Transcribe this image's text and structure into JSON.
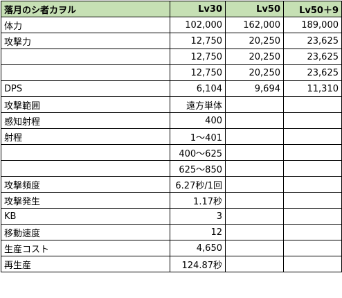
{
  "header": {
    "name": "落月のシ者カヲル",
    "col_lv30": "Lv30",
    "col_lv50": "Lv50",
    "col_lv50p9": "Lv50＋9"
  },
  "rows": [
    {
      "label": "体力",
      "lv30": "102,000",
      "lv50": "162,000",
      "lv50p9": "189,000"
    },
    {
      "label": "攻撃力",
      "lv30": "12,750",
      "lv50": "20,250",
      "lv50p9": "23,625"
    },
    {
      "label": "",
      "lv30": "12,750",
      "lv50": "20,250",
      "lv50p9": "23,625"
    },
    {
      "label": "",
      "lv30": "12,750",
      "lv50": "20,250",
      "lv50p9": "23,625"
    },
    {
      "label": "DPS",
      "lv30": "6,104",
      "lv50": "9,694",
      "lv50p9": "11,310"
    },
    {
      "label": "攻撃範囲",
      "lv30": "遠方単体",
      "lv50": "",
      "lv50p9": ""
    },
    {
      "label": "感知射程",
      "lv30": "400",
      "lv50": "",
      "lv50p9": ""
    },
    {
      "label": "射程",
      "lv30": "1～401",
      "lv50": "",
      "lv50p9": ""
    },
    {
      "label": "",
      "lv30": "400～625",
      "lv50": "",
      "lv50p9": ""
    },
    {
      "label": "",
      "lv30": "625～850",
      "lv50": "",
      "lv50p9": ""
    },
    {
      "label": "攻撃頻度",
      "lv30": "6.27秒/1回",
      "lv50": "",
      "lv50p9": ""
    },
    {
      "label": "攻撃発生",
      "lv30": "1.17秒",
      "lv50": "",
      "lv50p9": ""
    },
    {
      "label": "KB",
      "lv30": "3",
      "lv50": "",
      "lv50p9": ""
    },
    {
      "label": "移動速度",
      "lv30": "12",
      "lv50": "",
      "lv50p9": ""
    },
    {
      "label": "生産コスト",
      "lv30": "4,650",
      "lv50": "",
      "lv50p9": ""
    },
    {
      "label": "再生産",
      "lv30": "124.87秒",
      "lv50": "",
      "lv50p9": ""
    }
  ],
  "colors": {
    "header_bg": "#c6e0b4",
    "border": "#000000"
  }
}
